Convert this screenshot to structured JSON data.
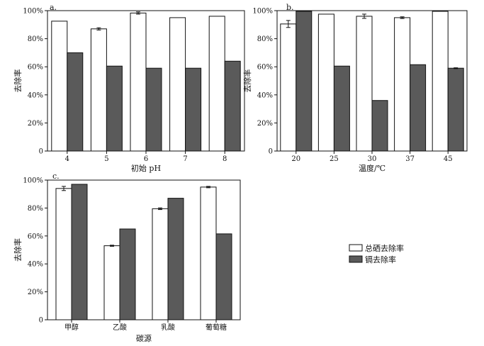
{
  "legend": {
    "items": [
      {
        "label": "总硒去除率",
        "color": "#ffffff"
      },
      {
        "label": "镉去除率",
        "color": "#5a5a5a"
      }
    ]
  },
  "chart_data": [
    {
      "type": "bar",
      "panel": "a.",
      "xlabel": "初始 pH",
      "ylabel": "去除率",
      "categories": [
        "4",
        "5",
        "6",
        "7",
        "8"
      ],
      "yticks": [
        "0",
        "20%",
        "40%",
        "60%",
        "80%",
        "100%"
      ],
      "ylim": [
        0,
        100
      ],
      "series": [
        {
          "name": "总硒去除率",
          "values": [
            92.5,
            87,
            98.3,
            95,
            96
          ],
          "errors": [
            0,
            0.8,
            0.8,
            0,
            0
          ]
        },
        {
          "name": "镉去除率",
          "values": [
            70,
            60.5,
            59,
            59,
            64
          ],
          "errors": [
            0,
            0,
            0,
            0,
            0
          ]
        }
      ]
    },
    {
      "type": "bar",
      "panel": "b.",
      "xlabel": "温度/℃",
      "ylabel": "去除率",
      "categories": [
        "20",
        "25",
        "30",
        "37",
        "45"
      ],
      "yticks": [
        "0",
        "20%",
        "40%",
        "60%",
        "80%",
        "100%"
      ],
      "ylim": [
        0,
        100
      ],
      "series": [
        {
          "name": "总硒去除率",
          "values": [
            90.5,
            97.5,
            96,
            95,
            99.5
          ],
          "errors": [
            2.5,
            0,
            1.5,
            0.6,
            0
          ]
        },
        {
          "name": "镉去除率",
          "values": [
            99.5,
            60.5,
            36,
            61.5,
            59
          ],
          "errors": [
            0,
            0,
            0,
            0,
            0.3
          ]
        }
      ]
    },
    {
      "type": "bar",
      "panel": "c.",
      "xlabel": "碳源",
      "ylabel": "去除率",
      "categories": [
        "甲醇",
        "乙酸",
        "乳酸",
        "葡萄糖"
      ],
      "yticks": [
        "0",
        "20%",
        "40%",
        "60%",
        "80%",
        "100%"
      ],
      "ylim": [
        0,
        100
      ],
      "series": [
        {
          "name": "总硒去除率",
          "values": [
            94,
            53,
            79.5,
            95
          ],
          "errors": [
            1.5,
            0.4,
            0.6,
            0.5
          ]
        },
        {
          "name": "镉去除率",
          "values": [
            97,
            65,
            87,
            61.5
          ],
          "errors": [
            0,
            0,
            0,
            0
          ]
        }
      ]
    }
  ]
}
